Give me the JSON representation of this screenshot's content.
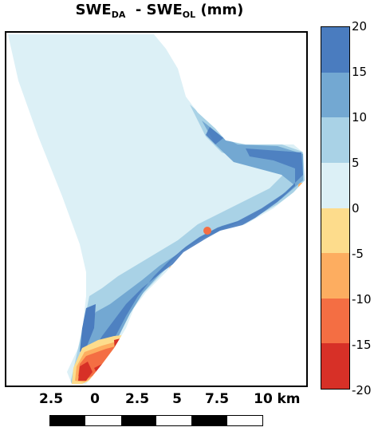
{
  "title": {
    "main": "SWE",
    "sub1": "DA",
    "mid": "- SWE",
    "sub2": "OL",
    "unit": "(mm)"
  },
  "colorbar": {
    "ticks": [
      "20",
      "15",
      "10",
      "5",
      "0",
      "-5",
      "-10",
      "-15",
      "-20"
    ],
    "colors": [
      "#4a7cbf",
      "#73a8d2",
      "#a9d2e6",
      "#dcf0f6",
      "#fddc8c",
      "#fdad60",
      "#f46e43",
      "#d73027"
    ]
  },
  "scale": {
    "labels": [
      "2.5",
      "0",
      "2.5",
      "5",
      "7.5",
      "10"
    ],
    "unit": "km",
    "segments": [
      "black",
      "white",
      "black",
      "white",
      "black",
      "white"
    ]
  },
  "colors": {
    "light_blue": "#dcf0f6",
    "mid_blue": "#a9d2e6",
    "blue": "#73a8d2",
    "dark_blue": "#4a7cbf",
    "yellow": "#fddc8c",
    "orange": "#fdad60",
    "red_orange": "#f46e43",
    "red": "#d73027"
  }
}
